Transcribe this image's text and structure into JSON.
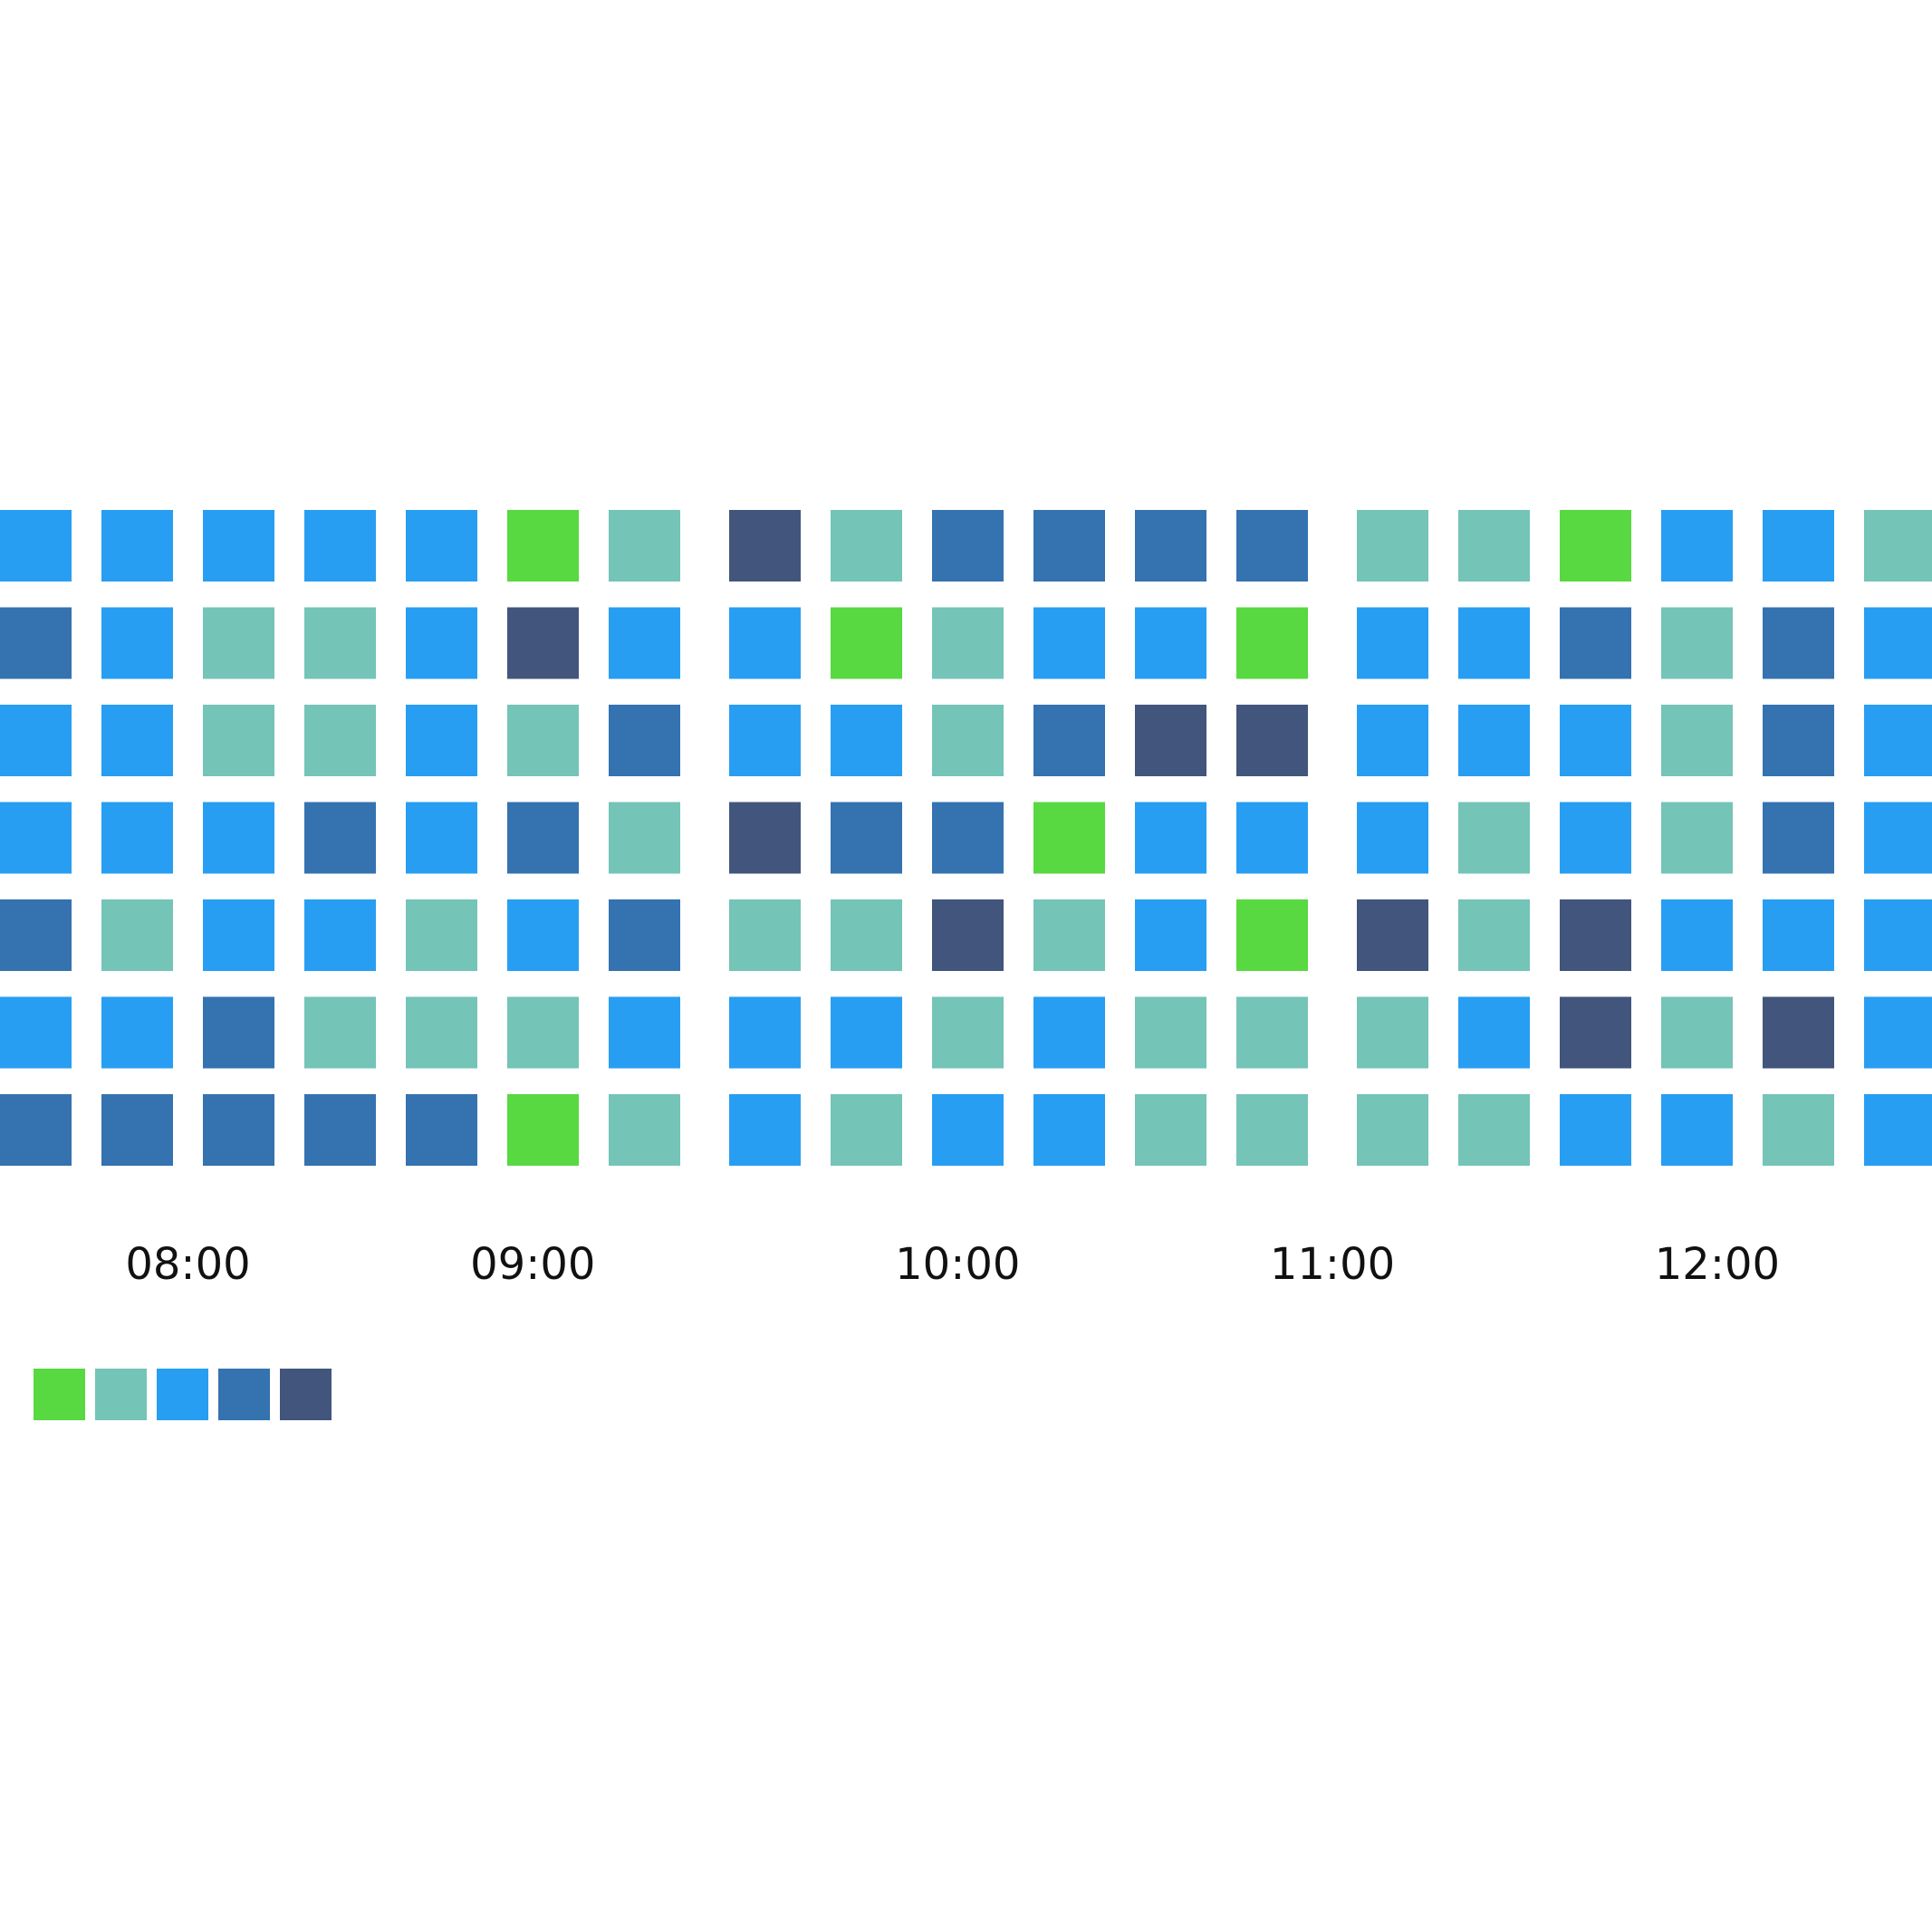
{
  "chart_data": {
    "type": "heatmap",
    "title": "",
    "xlabel": "",
    "ylabel": "",
    "legend_position": "bottom-left",
    "grid": false,
    "x_tick_labels": [
      {
        "label": "08:00",
        "column": 1.5
      },
      {
        "label": "09:00",
        "column": 4.9
      },
      {
        "label": "10:00",
        "column": 8.9
      },
      {
        "label": "11:00",
        "column": 12.5
      },
      {
        "label": "12:00",
        "column": 16.2
      }
    ],
    "column_groups": [
      [
        0,
        6
      ],
      [
        7,
        12
      ],
      [
        13,
        18
      ]
    ],
    "color_levels": [
      "#58d841",
      "#74c4b7",
      "#289ef2",
      "#3572b0",
      "#42557c"
    ],
    "cells": [
      [
        2,
        2,
        2,
        2,
        2,
        0,
        1,
        4,
        1,
        3,
        3,
        3,
        3,
        1,
        1,
        0,
        2,
        2,
        1
      ],
      [
        3,
        2,
        1,
        1,
        2,
        4,
        2,
        2,
        0,
        1,
        2,
        2,
        0,
        2,
        2,
        3,
        1,
        3,
        2
      ],
      [
        2,
        2,
        1,
        1,
        2,
        1,
        3,
        2,
        2,
        1,
        3,
        4,
        4,
        2,
        2,
        2,
        1,
        3,
        2
      ],
      [
        2,
        2,
        2,
        3,
        2,
        3,
        1,
        4,
        3,
        3,
        0,
        2,
        2,
        2,
        1,
        2,
        1,
        3,
        2
      ],
      [
        3,
        1,
        2,
        2,
        1,
        2,
        3,
        1,
        1,
        4,
        1,
        2,
        0,
        4,
        1,
        4,
        2,
        2,
        2
      ],
      [
        2,
        2,
        3,
        1,
        1,
        1,
        2,
        2,
        2,
        1,
        2,
        1,
        1,
        1,
        2,
        4,
        1,
        4,
        2
      ],
      [
        3,
        3,
        3,
        3,
        3,
        0,
        1,
        2,
        1,
        2,
        2,
        1,
        1,
        1,
        1,
        2,
        2,
        1,
        2
      ]
    ]
  }
}
